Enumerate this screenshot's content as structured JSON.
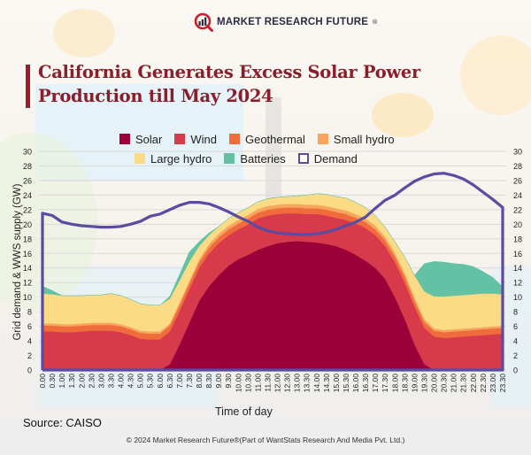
{
  "brand": {
    "name": "MARKET RESEARCH FUTURE",
    "registered": "®"
  },
  "title": "California Generates Excess Solar Power Production till May 2024",
  "source": "Source: CAISO",
  "copyright": "© 2024 Market Research Future®(Part of WantStats Research And Media Pvt. Ltd.)",
  "colors": {
    "solar": "#9b0039",
    "wind": "#d63a4b",
    "geothermal": "#f06c3c",
    "small_hydro": "#f7a65e",
    "large_hydro": "#fcdb86",
    "batteries": "#62c2a3",
    "demand": "#5b4ba3"
  },
  "chart_data": {
    "type": "area",
    "stacked": true,
    "title": "California Generates Excess Solar Power Production till May 2024",
    "xlabel": "Time of day",
    "ylabel": "Grid demand & WWS supply (GW)",
    "ylim": [
      0,
      30
    ],
    "yticks": [
      0,
      2,
      4,
      6,
      8,
      10,
      12,
      14,
      16,
      18,
      20,
      22,
      24,
      26,
      28,
      30
    ],
    "y_axis_both_sides": true,
    "grid": true,
    "legend_position": "top",
    "x": [
      "0.00",
      "0.30",
      "1.00",
      "1.30",
      "2.00",
      "2.30",
      "3.00",
      "3.30",
      "4.00",
      "4.30",
      "5.00",
      "5.30",
      "6.00",
      "6.30",
      "7.00",
      "7.30",
      "8.00",
      "8.30",
      "9.00",
      "9.30",
      "10.00",
      "10.30",
      "11.00",
      "11.30",
      "12.00",
      "12.30",
      "13.00",
      "13.30",
      "14.00",
      "14.30",
      "15.00",
      "15.30",
      "16.00",
      "16.30",
      "17.00",
      "17.30",
      "18.00",
      "18.30",
      "19.00",
      "19.30",
      "20.00",
      "20.30",
      "21.00",
      "21.30",
      "22.00",
      "22.30",
      "23.00",
      "23.30"
    ],
    "series": [
      {
        "name": "Solar",
        "key": "solar",
        "type": "area",
        "values": [
          0,
          0,
          0,
          0,
          0,
          0,
          0,
          0,
          0,
          0,
          0,
          0,
          0,
          0.8,
          3.5,
          6.5,
          9.5,
          11.5,
          13,
          14.3,
          15.2,
          15.8,
          16.5,
          17,
          17.4,
          17.6,
          17.7,
          17.6,
          17.5,
          17.3,
          17,
          16.5,
          15.8,
          15,
          14,
          12.5,
          10,
          7,
          3.5,
          0.8,
          0,
          0,
          0,
          0,
          0,
          0,
          0,
          0
        ]
      },
      {
        "name": "Wind",
        "key": "wind",
        "type": "area",
        "values": [
          5.3,
          5.3,
          5.2,
          5.2,
          5.3,
          5.4,
          5.4,
          5.4,
          5.2,
          4.8,
          4.3,
          4.2,
          4.2,
          4.5,
          4.6,
          4.6,
          4.5,
          4.5,
          4.4,
          4.2,
          4.1,
          4.2,
          4.3,
          4.2,
          4,
          3.9,
          3.8,
          3.8,
          3.9,
          3.9,
          3.9,
          4.1,
          4.3,
          4.5,
          4.5,
          4.5,
          4.8,
          5,
          5.2,
          5,
          4.6,
          4.4,
          4.5,
          4.6,
          4.7,
          4.8,
          4.9,
          5
        ]
      },
      {
        "name": "Geothermal",
        "key": "geothermal",
        "type": "area",
        "values": [
          0.8,
          0.8,
          0.8,
          0.8,
          0.8,
          0.8,
          0.8,
          0.8,
          0.8,
          0.8,
          0.8,
          0.8,
          0.8,
          0.8,
          0.8,
          0.8,
          0.8,
          0.8,
          0.8,
          0.8,
          0.8,
          0.8,
          0.8,
          0.8,
          0.8,
          0.8,
          0.8,
          0.8,
          0.8,
          0.8,
          0.8,
          0.8,
          0.8,
          0.8,
          0.8,
          0.8,
          0.8,
          0.8,
          0.8,
          0.8,
          0.8,
          0.8,
          0.8,
          0.8,
          0.8,
          0.8,
          0.8,
          0.8
        ]
      },
      {
        "name": "Small hydro",
        "key": "small_hydro",
        "type": "area",
        "values": [
          0.3,
          0.3,
          0.3,
          0.3,
          0.3,
          0.3,
          0.3,
          0.3,
          0.3,
          0.3,
          0.3,
          0.3,
          0.3,
          0.3,
          0.4,
          0.4,
          0.4,
          0.5,
          0.5,
          0.5,
          0.5,
          0.5,
          0.5,
          0.5,
          0.5,
          0.5,
          0.5,
          0.5,
          0.5,
          0.5,
          0.5,
          0.5,
          0.5,
          0.5,
          0.5,
          0.5,
          0.5,
          0.5,
          0.5,
          0.4,
          0.3,
          0.3,
          0.3,
          0.3,
          0.3,
          0.3,
          0.3,
          0.3
        ]
      },
      {
        "name": "Large hydro",
        "key": "large_hydro",
        "type": "area",
        "values": [
          4.1,
          4,
          3.9,
          3.9,
          3.8,
          3.8,
          3.8,
          4,
          3.9,
          3.8,
          3.7,
          3.6,
          3.6,
          3.4,
          3,
          2.6,
          1.8,
          1.2,
          1,
          1,
          1,
          1,
          1,
          1,
          1,
          1,
          1.1,
          1.3,
          1.5,
          1.6,
          1.6,
          1.7,
          1.6,
          1.5,
          1.4,
          1.3,
          1.5,
          2.2,
          3,
          3.8,
          4.4,
          4.6,
          4.6,
          4.6,
          4.6,
          4.6,
          4.5,
          4.3
        ]
      },
      {
        "name": "Batteries",
        "key": "batteries",
        "type": "area",
        "values": [
          1,
          0.5,
          0,
          0,
          0,
          0,
          0,
          0,
          0,
          0,
          0,
          0,
          0,
          0.3,
          0.8,
          1.3,
          0.6,
          0.3,
          0,
          0,
          0,
          0,
          0,
          0,
          0,
          0,
          0,
          0,
          0,
          0,
          0,
          0,
          0,
          0,
          0,
          0,
          0,
          0,
          0,
          3.8,
          4.8,
          4.7,
          4.4,
          4.2,
          3.8,
          3,
          2.2,
          1
        ]
      },
      {
        "name": "Demand",
        "key": "demand",
        "type": "line",
        "values": [
          21.5,
          21.2,
          20.3,
          20,
          19.8,
          19.7,
          19.6,
          19.6,
          19.7,
          20,
          20.4,
          21.1,
          21.4,
          22,
          22.6,
          23,
          23,
          22.8,
          22.3,
          21.7,
          21,
          20.4,
          19.6,
          19.1,
          18.8,
          18.7,
          18.6,
          18.6,
          18.7,
          18.9,
          19.3,
          19.8,
          20.3,
          21,
          22.2,
          23.3,
          24,
          25,
          25.9,
          26.5,
          26.9,
          27,
          26.7,
          26.2,
          25.4,
          24.4,
          23.4,
          22.3
        ]
      }
    ]
  }
}
